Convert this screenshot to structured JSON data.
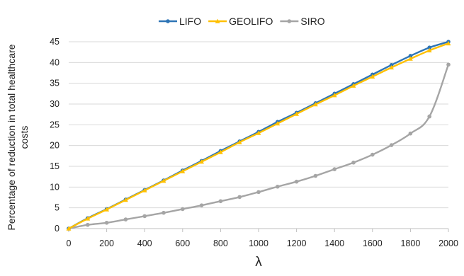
{
  "chart_data": {
    "type": "line",
    "title": "",
    "xlabel": "λ",
    "ylabel": "Percentage of reduction in total healthcare costs",
    "ylabel_lines": [
      "Percentage of reduction in total healthcare",
      "costs"
    ],
    "xlim": [
      0,
      2000
    ],
    "ylim": [
      0,
      45
    ],
    "x_ticks": [
      0,
      200,
      400,
      600,
      800,
      1000,
      1200,
      1400,
      1600,
      1800,
      2000
    ],
    "y_ticks": [
      0,
      5,
      10,
      15,
      20,
      25,
      30,
      35,
      40,
      45
    ],
    "grid": "horizontal",
    "legend_position": "top",
    "x": [
      0,
      100,
      200,
      300,
      400,
      500,
      600,
      700,
      800,
      900,
      1000,
      1100,
      1200,
      1300,
      1400,
      1500,
      1600,
      1700,
      1800,
      1900,
      2000
    ],
    "series": [
      {
        "name": "LIFO",
        "color": "#2e75b6",
        "marker": "circle",
        "values": [
          0,
          2.5,
          4.7,
          7.0,
          9.3,
          11.6,
          14.0,
          16.3,
          18.7,
          21.0,
          23.3,
          25.7,
          27.9,
          30.2,
          32.5,
          34.8,
          37.1,
          39.4,
          41.6,
          43.6,
          45.0
        ]
      },
      {
        "name": "GEOLIFO",
        "color": "#ffc000",
        "marker": "triangle",
        "values": [
          0,
          2.4,
          4.6,
          6.9,
          9.2,
          11.5,
          13.8,
          16.1,
          18.4,
          20.8,
          23.0,
          25.3,
          27.6,
          29.9,
          32.1,
          34.4,
          36.6,
          38.8,
          40.9,
          42.9,
          44.6
        ]
      },
      {
        "name": "SIRO",
        "color": "#a5a5a5",
        "marker": "circle",
        "values": [
          0,
          0.9,
          1.4,
          2.2,
          3.0,
          3.8,
          4.7,
          5.6,
          6.6,
          7.6,
          8.8,
          10.1,
          11.3,
          12.7,
          14.3,
          15.9,
          17.8,
          20.1,
          22.9,
          27.0,
          39.5
        ]
      }
    ]
  }
}
